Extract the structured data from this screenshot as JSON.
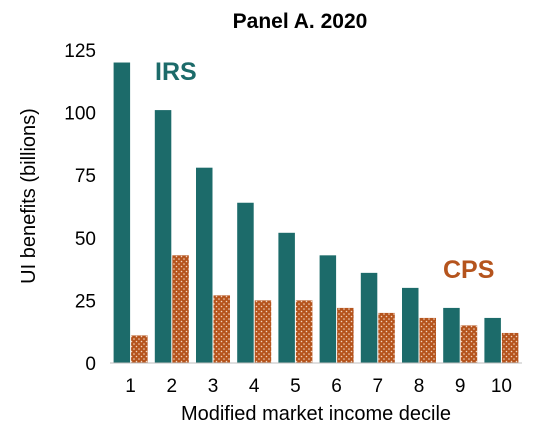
{
  "chart_data": {
    "type": "bar",
    "title": "Panel A. 2020",
    "xlabel": "Modified market income decile",
    "ylabel": "UI benefits (billions)",
    "ylim": [
      0,
      125
    ],
    "yticks": [
      0,
      25,
      50,
      75,
      100,
      125
    ],
    "grid": false,
    "legend": "none",
    "categories": [
      "1",
      "2",
      "3",
      "4",
      "5",
      "6",
      "7",
      "8",
      "9",
      "10"
    ],
    "series": [
      {
        "name": "IRS",
        "color": "#1c6b6a",
        "pattern": "solid",
        "values": [
          120,
          101,
          78,
          64,
          52,
          43,
          36,
          30,
          22,
          18
        ]
      },
      {
        "name": "CPS",
        "color": "#b5541d",
        "pattern": "dotted",
        "values": [
          11,
          43,
          27,
          25,
          25,
          22,
          20,
          18,
          15,
          12
        ]
      }
    ]
  }
}
